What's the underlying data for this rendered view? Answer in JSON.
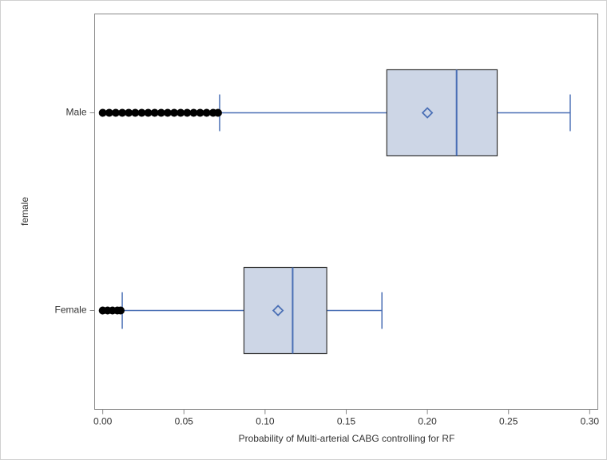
{
  "chart_data": {
    "type": "box",
    "orientation": "horizontal",
    "x_label": "Probability of Multi-arterial CABG controlling for RF",
    "y_label": "female",
    "categories": [
      "Male",
      "Female"
    ],
    "whisker_low": [
      0.072,
      0.012
    ],
    "q1": [
      0.175,
      0.087
    ],
    "median": [
      0.218,
      0.117
    ],
    "q3": [
      0.243,
      0.138
    ],
    "whisker_high": [
      0.288,
      0.172
    ],
    "mean": [
      0.2,
      0.108
    ],
    "outliers": [
      [
        0.0,
        0.004,
        0.008,
        0.012,
        0.016,
        0.02,
        0.024,
        0.028,
        0.032,
        0.036,
        0.04,
        0.044,
        0.048,
        0.052,
        0.056,
        0.06,
        0.064,
        0.068,
        0.071
      ],
      [
        0.0,
        0.003,
        0.006,
        0.009,
        0.011
      ]
    ],
    "box_color": "#cdd6e6",
    "line_color": "#4a6fb5",
    "outlier_color": "#000000",
    "xlim": [
      -0.005,
      0.305
    ],
    "xticks": [
      {
        "value": 0.0,
        "label": "0.00"
      },
      {
        "value": 0.05,
        "label": "0.05"
      },
      {
        "value": 0.1,
        "label": "0.10"
      },
      {
        "value": 0.15,
        "label": "0.15"
      },
      {
        "value": 0.2,
        "label": "0.20"
      },
      {
        "value": 0.25,
        "label": "0.25"
      },
      {
        "value": 0.3,
        "label": "0.30"
      }
    ]
  }
}
